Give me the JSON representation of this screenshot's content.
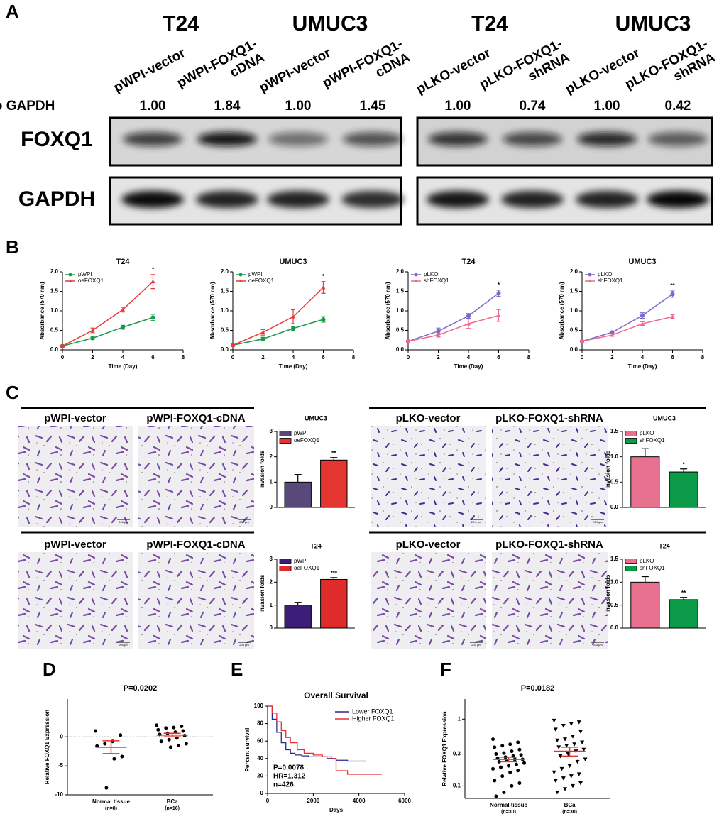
{
  "panel_labels": [
    "A",
    "B",
    "C",
    "D",
    "E",
    "F"
  ],
  "blot": {
    "groups": [
      "T24",
      "UMUC3",
      "T24",
      "UMUC3"
    ],
    "lanes": [
      [
        "pWPI-vector"
      ],
      [
        "pWPI-FOXQ1-",
        "cDNA"
      ],
      [
        "pWPI-vector"
      ],
      [
        "pWPI-FOXQ1-",
        "cDNA"
      ],
      [
        "pLKO-vector"
      ],
      [
        "pLKO-FOXQ1-",
        "shRNA"
      ],
      [
        "pLKO-vector"
      ],
      [
        "pLKO-FOXQ1-",
        "shRNA"
      ]
    ],
    "ratio_label": "Ratio to GAPDH",
    "ratios": [
      "1.00",
      "1.84",
      "1.00",
      "1.45",
      "1.00",
      "0.74",
      "1.00",
      "0.42"
    ],
    "rows": [
      "FOXQ1",
      "GAPDH"
    ]
  },
  "micrographs": {
    "rows": [
      {
        "labels": [
          "pWPI-vector",
          "pWPI-FOXQ1-cDNA",
          "pLKO-vector",
          "pLKO-FOXQ1-shRNA"
        ],
        "scale_bars": [
          "200 μm",
          "200 μm",
          "20.0 μm",
          "20.0 μm"
        ]
      },
      {
        "labels": [
          "pWPI-vector",
          "pWPI-FOXQ1-cDNA",
          "pLKO-vector",
          "pLKO-FOXQ1-shRNA"
        ],
        "scale_bars": [
          "200 μm",
          "200 μm",
          "200 μm",
          "200 μm"
        ]
      }
    ]
  },
  "chart_data": [
    {
      "type": "line",
      "title": "T24",
      "ylabel": "Absorbance (570 nm)",
      "xlabel": "Time (Day)",
      "x": [
        0,
        2,
        4,
        6
      ],
      "xlim": [
        0,
        8
      ],
      "xticks": [
        0,
        2,
        4,
        6,
        8
      ],
      "ylim": [
        0,
        2
      ],
      "yticks": [
        {
          "value": 0,
          "label": "0.0"
        },
        0.5,
        {
          "value": 1,
          "label": "1.0"
        },
        1.5,
        {
          "value": 2,
          "label": "2.0"
        }
      ],
      "annotation": "*",
      "series": [
        {
          "name": "pWPI",
          "color": "#1a9a4a",
          "marker": "circle",
          "values": [
            0.1,
            0.3,
            0.58,
            0.83
          ],
          "errors": [
            0.02,
            0.03,
            0.05,
            0.08
          ]
        },
        {
          "name": "oeFOXQ1",
          "color": "#e53935",
          "marker": "triangle",
          "values": [
            0.1,
            0.5,
            1.03,
            1.75
          ],
          "errors": [
            0.02,
            0.06,
            0.06,
            0.18
          ]
        }
      ]
    },
    {
      "type": "line",
      "title": "UMUC3",
      "ylabel": "Absorbance (570 nm)",
      "xlabel": "Time (Day)",
      "x": [
        0,
        2,
        4,
        6
      ],
      "xlim": [
        0,
        8
      ],
      "xticks": [
        0,
        2,
        4,
        6,
        8
      ],
      "ylim": [
        0,
        2
      ],
      "yticks": [
        {
          "value": 0,
          "label": "0.0"
        },
        0.5,
        {
          "value": 1,
          "label": "1.0"
        },
        1.5,
        {
          "value": 2,
          "label": "2.0"
        }
      ],
      "annotation": "*",
      "series": [
        {
          "name": "pWPI",
          "color": "#1a9a4a",
          "marker": "circle",
          "values": [
            0.12,
            0.28,
            0.55,
            0.78
          ],
          "errors": [
            0.02,
            0.04,
            0.05,
            0.07
          ]
        },
        {
          "name": "oeFOXQ1",
          "color": "#e53935",
          "marker": "triangle",
          "values": [
            0.12,
            0.45,
            0.85,
            1.6
          ],
          "errors": [
            0.02,
            0.07,
            0.18,
            0.15
          ]
        }
      ]
    },
    {
      "type": "line",
      "title": "T24",
      "ylabel": "Absorbance (570 nm)",
      "xlabel": "Time (Day)",
      "x": [
        0,
        2,
        4,
        6
      ],
      "xlim": [
        0,
        8
      ],
      "xticks": [
        0,
        2,
        4,
        6,
        8
      ],
      "ylim": [
        0,
        2
      ],
      "yticks": [
        {
          "value": 0,
          "label": "0.0"
        },
        0.5,
        {
          "value": 1,
          "label": "1.0"
        },
        1.5,
        {
          "value": 2,
          "label": "2.0"
        }
      ],
      "annotation": "*",
      "series": [
        {
          "name": "pLKO",
          "color": "#7b68c8",
          "marker": "circle",
          "values": [
            0.22,
            0.48,
            0.87,
            1.45
          ],
          "errors": [
            0.02,
            0.08,
            0.06,
            0.08
          ]
        },
        {
          "name": "shFOXQ1",
          "color": "#f06a8e",
          "marker": "triangle",
          "values": [
            0.22,
            0.38,
            0.67,
            0.88
          ],
          "errors": [
            0.02,
            0.05,
            0.12,
            0.15
          ]
        }
      ]
    },
    {
      "type": "line",
      "title": "UMUC3",
      "ylabel": "Absorbance (570 nm)",
      "xlabel": "Time (Day)",
      "x": [
        0,
        2,
        4,
        6
      ],
      "xlim": [
        0,
        8
      ],
      "xticks": [
        0,
        2,
        4,
        6,
        8
      ],
      "ylim": [
        0,
        2
      ],
      "yticks": [
        {
          "value": 0,
          "label": "0.0"
        },
        0.5,
        {
          "value": 1,
          "label": "1.0"
        },
        1.5,
        {
          "value": 2,
          "label": "2.0"
        }
      ],
      "annotation": "**",
      "series": [
        {
          "name": "pLKO",
          "color": "#7b68c8",
          "marker": "circle",
          "values": [
            0.22,
            0.45,
            0.88,
            1.43
          ],
          "errors": [
            0.02,
            0.03,
            0.07,
            0.08
          ]
        },
        {
          "name": "shFOXQ1",
          "color": "#f06a8e",
          "marker": "triangle",
          "values": [
            0.22,
            0.38,
            0.67,
            0.85
          ],
          "errors": [
            0.02,
            0.03,
            0.05,
            0.05
          ]
        }
      ]
    },
    {
      "type": "bar",
      "title": "UMUC3",
      "ylabel": "invasion folds",
      "ylim": [
        0,
        3
      ],
      "yticks": [
        0,
        1,
        2,
        3
      ],
      "annotation": "**",
      "series": [
        {
          "name": "pWPI",
          "color": "#574a7a",
          "values": [
            1.0
          ],
          "errors": [
            0.3
          ]
        },
        {
          "name": "oeFOXQ1",
          "color": "#e53530",
          "values": [
            1.87
          ],
          "errors": [
            0.1
          ]
        }
      ]
    },
    {
      "type": "bar",
      "title": "UMUC3",
      "ylabel": "invasion folds",
      "ylim": [
        0,
        1.5
      ],
      "yticks": [
        {
          "value": 0,
          "label": "0.0"
        },
        0.5,
        {
          "value": 1,
          "label": "1.0"
        },
        1.5
      ],
      "annotation": "*",
      "series": [
        {
          "name": "pLKO",
          "color": "#e8718f",
          "values": [
            1.0
          ],
          "errors": [
            0.16
          ]
        },
        {
          "name": "shFOXQ1",
          "color": "#0a9a48",
          "values": [
            0.7
          ],
          "errors": [
            0.06
          ]
        }
      ]
    },
    {
      "type": "bar",
      "title": "T24",
      "ylabel": "invasion folds",
      "ylim": [
        0,
        3
      ],
      "yticks": [
        0,
        1,
        2,
        3
      ],
      "annotation": "***",
      "series": [
        {
          "name": "pWPI",
          "color": "#3c1e78",
          "values": [
            1.0
          ],
          "errors": [
            0.12
          ]
        },
        {
          "name": "oeFOXQ1",
          "color": "#e02b2b",
          "values": [
            2.12
          ],
          "errors": [
            0.08
          ]
        }
      ]
    },
    {
      "type": "bar",
      "title": "T24",
      "ylabel": "invasion folds",
      "ylim": [
        0,
        1.5
      ],
      "yticks": [
        {
          "value": 0,
          "label": "0.0"
        },
        0.5,
        {
          "value": 1,
          "label": "1.0"
        },
        1.5
      ],
      "annotation": "**",
      "series": [
        {
          "name": "pLKO",
          "color": "#e8718f",
          "values": [
            1.0
          ],
          "errors": [
            0.12
          ]
        },
        {
          "name": "shFOXQ1",
          "color": "#0a9a48",
          "values": [
            0.62
          ],
          "errors": [
            0.05
          ]
        }
      ]
    },
    {
      "type": "dotplot",
      "title": "P=0.0202",
      "ylabel": "Relative  FOXQ1 Expression",
      "log": false,
      "zero_line": true,
      "ylim": [
        -10,
        6.5
      ],
      "yticks": [
        0,
        -5,
        -10
      ],
      "categories": [
        "Normal tissue",
        "BCa"
      ],
      "category_notes": [
        "(n=8)",
        "(n=16)"
      ],
      "markers": [
        "circle",
        "circle"
      ],
      "mean_color": "#e8322f",
      "points": [
        [
          1.0,
          0.3,
          -0.8,
          -1.2,
          -1.6,
          -3.4,
          -3.8,
          -8.8
        ],
        [
          2.0,
          1.8,
          1.6,
          1.5,
          1.2,
          1.0,
          0.8,
          0.6,
          0.4,
          0.2,
          -0.2,
          -0.5,
          -0.8,
          -1.2,
          -1.5,
          -1.8
        ]
      ],
      "means": [
        -1.8,
        0.3
      ],
      "sems": [
        1.1,
        0.3
      ]
    },
    {
      "type": "survival",
      "title": "Overall Survival",
      "ylabel": "Percent survival",
      "xlabel": "Days",
      "xlim": [
        0,
        6000
      ],
      "xticks": [
        0,
        2000,
        4000,
        6000
      ],
      "ylim": [
        0,
        100
      ],
      "yticks": [
        0,
        20,
        40,
        60,
        80,
        100
      ],
      "annotations": [
        "P=0.0078",
        "HR=1.312",
        "n=426"
      ],
      "series": [
        {
          "name": "Lower FOXQ1",
          "color": "#2b2b8c",
          "x": [
            0,
            200,
            400,
            600,
            800,
            1000,
            1200,
            1500,
            1800,
            2200,
            2600,
            3000,
            3500,
            4000,
            4300
          ],
          "values": [
            100,
            85,
            70,
            58,
            50,
            46,
            44,
            43,
            42,
            42,
            40,
            38,
            37,
            37,
            37
          ]
        },
        {
          "name": "Higher FOXQ1",
          "color": "#e83030",
          "x": [
            0,
            200,
            400,
            600,
            800,
            1000,
            1300,
            1600,
            2000,
            2400,
            2800,
            3000,
            3500,
            4000,
            5000
          ],
          "values": [
            100,
            92,
            82,
            72,
            64,
            58,
            50,
            46,
            44,
            42,
            40,
            26,
            22,
            22,
            22
          ]
        }
      ]
    },
    {
      "type": "dotplot",
      "title": "P=0.0182",
      "ylabel": "Relative FOXQ1 Expression",
      "log": true,
      "zero_line": false,
      "ylim": [
        0.065,
        2
      ],
      "yticks": [
        0.1,
        0.3,
        1
      ],
      "categories": [
        "Normal tissue",
        "BCa"
      ],
      "category_notes": [
        "(n=30)",
        "(n=30)"
      ],
      "markers": [
        "circle",
        "triangle"
      ],
      "mean_color": "#e8322f",
      "points": [
        [
          0.5,
          0.45,
          0.42,
          0.4,
          0.38,
          0.35,
          0.33,
          0.31,
          0.3,
          0.29,
          0.28,
          0.27,
          0.26,
          0.25,
          0.25,
          0.24,
          0.23,
          0.22,
          0.21,
          0.2,
          0.19,
          0.18,
          0.17,
          0.16,
          0.14,
          0.12,
          0.11,
          0.1,
          0.08,
          0.07
        ],
        [
          0.95,
          0.9,
          0.85,
          0.8,
          0.7,
          0.65,
          0.55,
          0.5,
          0.48,
          0.45,
          0.42,
          0.4,
          0.38,
          0.35,
          0.33,
          0.3,
          0.28,
          0.25,
          0.23,
          0.2,
          0.18,
          0.16,
          0.15,
          0.14,
          0.13,
          0.12,
          0.11,
          0.1,
          0.09,
          0.08
        ]
      ],
      "means": [
        0.25,
        0.33
      ],
      "sems": [
        0.02,
        0.05
      ]
    }
  ]
}
